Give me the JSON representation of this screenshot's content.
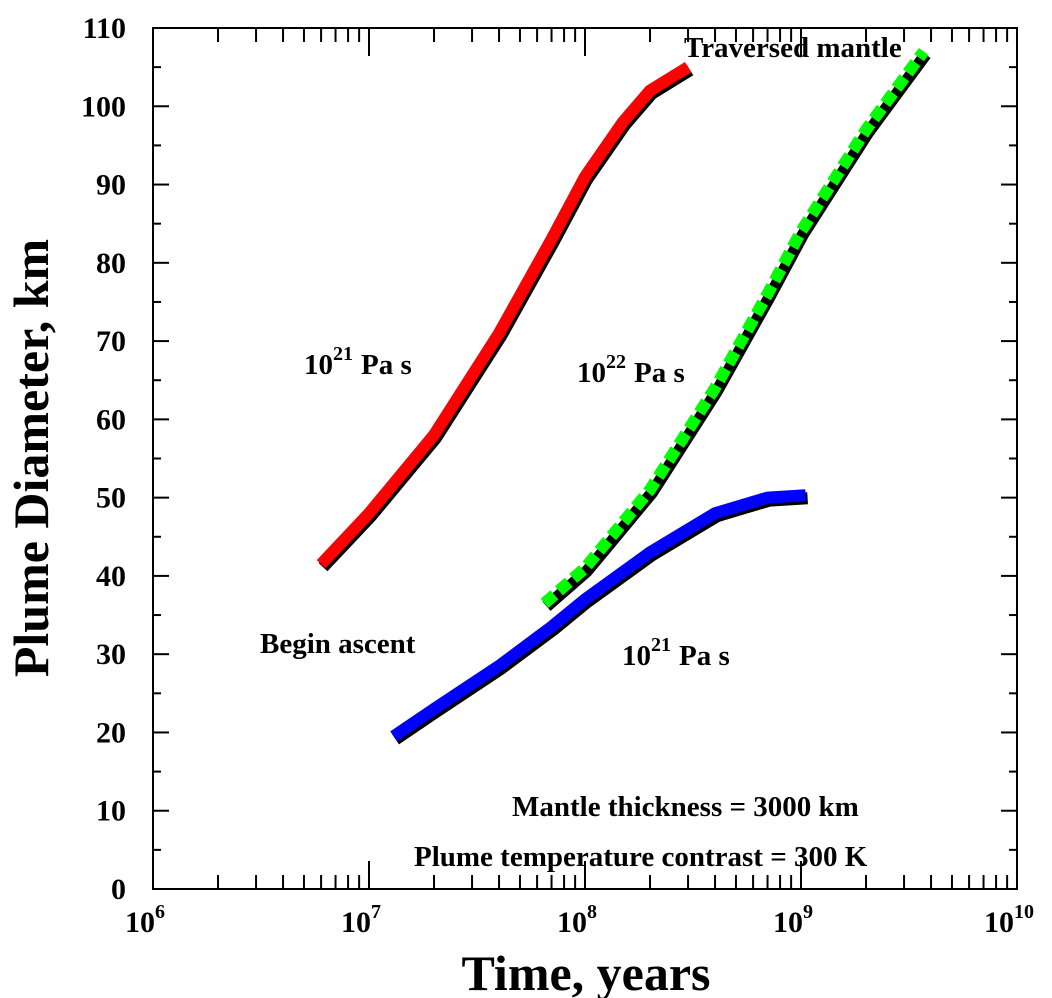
{
  "chart_data": {
    "type": "line",
    "xlabel": "Time, years",
    "ylabel": "Plume Diameter, km",
    "xscale": "log",
    "xlim": [
      1000000,
      10000000000
    ],
    "ylim": [
      0,
      110
    ],
    "grid": false,
    "x_ticks": [
      {
        "value": 1000000,
        "base": "10",
        "exp": "6"
      },
      {
        "value": 10000000,
        "base": "10",
        "exp": "7"
      },
      {
        "value": 100000000,
        "base": "10",
        "exp": "8"
      },
      {
        "value": 1000000000,
        "base": "10",
        "exp": "9"
      },
      {
        "value": 10000000000,
        "base": "10",
        "exp": "10"
      }
    ],
    "y_ticks": [
      0,
      10,
      20,
      30,
      40,
      50,
      60,
      70,
      80,
      90,
      100,
      110
    ],
    "series": [
      {
        "color": "#ff0000",
        "style": "solid",
        "x": [
          6000000,
          10000000,
          20000000,
          40000000,
          70000000,
          100000000,
          150000000,
          200000000,
          300000000
        ],
        "y": [
          41.5,
          48,
          58,
          71,
          83,
          91,
          98,
          102,
          105
        ]
      },
      {
        "color": "#00ff00",
        "style": "dashed",
        "x": [
          65000000,
          100000000,
          200000000,
          400000000,
          700000000,
          1000000000,
          2000000000,
          3700000000
        ],
        "y": [
          36.5,
          41,
          51,
          64,
          76,
          84,
          97,
          107
        ]
      },
      {
        "color": "#0000ff",
        "style": "solid",
        "x": [
          13000000,
          20000000,
          40000000,
          70000000,
          100000000,
          200000000,
          400000000,
          700000000,
          1050000000
        ],
        "y": [
          19.5,
          23,
          28.5,
          33.5,
          37,
          43,
          48,
          50,
          50.3
        ]
      }
    ],
    "annotations": {
      "red_viscosity": {
        "base": "10",
        "exp": "21",
        "unit": "Pa s"
      },
      "green_viscosity": {
        "base": "10",
        "exp": "22",
        "unit": "Pa s"
      },
      "blue_viscosity": {
        "base": "10",
        "exp": "21",
        "unit": "Pa s"
      },
      "traversed": "Traversed mantle",
      "begin": "Begin ascent",
      "thickness": "Mantle thickness = 3000 km",
      "contrast": "Plume temperature contrast = 300 K"
    }
  }
}
